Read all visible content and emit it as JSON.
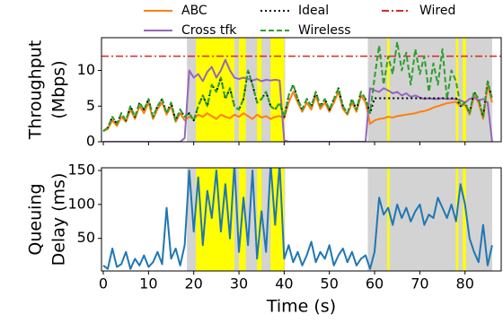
{
  "chart_data": [
    {
      "type": "line",
      "ylabel": [
        "Throughput",
        "(Mbps)"
      ],
      "x": [
        0,
        1,
        2,
        3,
        4,
        5,
        6,
        7,
        8,
        9,
        10,
        11,
        12,
        13,
        14,
        15,
        16,
        17,
        18,
        19,
        20,
        21,
        22,
        23,
        24,
        25,
        26,
        27,
        28,
        29,
        30,
        31,
        32,
        33,
        34,
        35,
        36,
        37,
        38,
        39,
        40,
        41,
        42,
        43,
        44,
        45,
        46,
        47,
        48,
        49,
        50,
        51,
        52,
        53,
        54,
        55,
        56,
        57,
        58,
        59,
        60,
        61,
        62,
        63,
        64,
        65,
        66,
        67,
        68,
        69,
        70,
        71,
        72,
        73,
        74,
        75,
        76,
        77,
        78,
        79,
        80,
        81,
        82,
        83,
        84,
        85,
        86
      ],
      "series": [
        {
          "name": "ABC",
          "color": "#ff7f0e",
          "style": "solid",
          "values": [
            1.5,
            1.8,
            3,
            2.2,
            3.5,
            2.8,
            4.5,
            3.2,
            5,
            4,
            5.5,
            3.2,
            4.6,
            5.5,
            3.8,
            5,
            2.8,
            4,
            3,
            3.5,
            3.2,
            3.8,
            3.5,
            4,
            3.6,
            3.2,
            3.8,
            3.5,
            3.3,
            3.8,
            3.5,
            4,
            3.6,
            3.2,
            3.8,
            3.4,
            3.6,
            3.2,
            3.5,
            3.6,
            3.3,
            5.5,
            7,
            5.5,
            4.2,
            5.5,
            4.5,
            6.5,
            4.6,
            5.5,
            4.2,
            5.5,
            7,
            4.6,
            3.8,
            5.5,
            4.2,
            6.5,
            5.5,
            2.5,
            3,
            3.2,
            3.3,
            3.5,
            3.4,
            3.6,
            3.7,
            3.8,
            3.9,
            4,
            4.2,
            4.3,
            4.5,
            4.8,
            5,
            5.2,
            5.4,
            5.5,
            5.6,
            5,
            5.2,
            3.8,
            6.5,
            5.5,
            3.2,
            8,
            5.5
          ]
        },
        {
          "name": "Cross tfk",
          "color": "#9467bd",
          "style": "solid",
          "values": [
            0,
            0,
            0,
            0,
            0,
            0,
            0,
            0,
            0,
            0,
            0,
            0,
            0,
            0,
            0,
            0,
            0,
            0,
            0.5,
            10,
            9,
            9.5,
            8.5,
            9.8,
            10.5,
            9,
            10,
            11.5,
            10,
            9,
            8.8,
            9,
            8.8,
            8.6,
            8.8,
            8.5,
            8.7,
            8.6,
            8.7,
            8.6,
            0.2,
            0,
            0,
            0,
            0,
            0,
            0,
            0,
            0,
            0,
            0,
            0,
            0,
            0,
            0,
            0,
            0,
            0,
            0,
            7.5,
            7.2,
            7,
            7.5,
            7.2,
            6.8,
            7,
            6.5,
            6.8,
            6.3,
            6.5,
            6.2,
            6,
            6.1,
            6,
            6,
            6.1,
            6,
            6,
            6,
            5.8,
            5.5,
            6,
            6.2,
            5.8,
            6,
            5.5,
            0
          ]
        },
        {
          "name": "Ideal",
          "color": "#000000",
          "style": "dotted",
          "values": [
            1.5,
            2,
            3.5,
            2.5,
            4,
            3,
            5,
            3.5,
            5.5,
            4.5,
            6,
            3.5,
            5,
            6,
            4,
            5.5,
            3,
            4.5,
            3.5,
            4,
            3,
            5,
            6.5,
            5,
            8,
            7,
            9,
            6,
            7.5,
            5,
            4.5,
            6,
            10,
            8,
            5.5,
            6,
            7,
            5,
            4.5,
            5.5,
            3.5,
            6.5,
            8,
            6,
            4.5,
            6,
            5,
            7,
            5,
            6,
            4.5,
            6,
            7.5,
            5,
            4,
            6,
            4.5,
            7,
            6,
            4,
            6.1,
            6.1,
            6.1,
            6.1,
            6.1,
            6.1,
            6.1,
            6.1,
            6.1,
            6.1,
            6.1,
            6.1,
            6.1,
            6.1,
            6.1,
            6.1,
            6.1,
            6.1,
            6.1,
            5,
            5.5,
            4,
            7,
            6,
            3.5,
            8.5,
            6
          ]
        },
        {
          "name": "Wireless",
          "color": "#2ca02c",
          "style": "dashed",
          "values": [
            1.5,
            2,
            3.5,
            2.5,
            4,
            3,
            5,
            3.5,
            5.5,
            4.5,
            6,
            3.5,
            5,
            6,
            4,
            5.5,
            3,
            4.5,
            3.5,
            4,
            3,
            5,
            6.5,
            5,
            8,
            7,
            9,
            6,
            7.5,
            5,
            4.5,
            6,
            10,
            8,
            5.5,
            6,
            7,
            5,
            4.5,
            5.5,
            3.5,
            6.5,
            8,
            6,
            4.5,
            6,
            5,
            7,
            5,
            6,
            4.5,
            6,
            7.5,
            5,
            4,
            6,
            4.5,
            7,
            6,
            4,
            9,
            13.5,
            8,
            12,
            9.5,
            14,
            10,
            12.5,
            8,
            13,
            9.5,
            12,
            7,
            11,
            8,
            13,
            6,
            10,
            8.5,
            5,
            5.5,
            4,
            7,
            6,
            3.5,
            8.5,
            6
          ]
        }
      ],
      "hlines": [
        {
          "name": "Wired",
          "color": "#d62728",
          "style": "dashdot",
          "value": 12
        }
      ],
      "spans": [
        {
          "start": 18.5,
          "end": 40.2,
          "color": "#d3d3d3"
        },
        {
          "start": 58.5,
          "end": 86,
          "color": "#d3d3d3"
        },
        {
          "start": 20.5,
          "end": 29,
          "color": "#ffff00"
        },
        {
          "start": 30,
          "end": 31.5,
          "color": "#ffff00"
        },
        {
          "start": 34,
          "end": 35,
          "color": "#ffff00"
        },
        {
          "start": 37,
          "end": 40,
          "color": "#ffff00"
        },
        {
          "start": 62.8,
          "end": 63.3,
          "color": "#ffff00"
        },
        {
          "start": 78,
          "end": 78.5,
          "color": "#ffff00"
        },
        {
          "start": 79.5,
          "end": 80.2,
          "color": "#ffff00"
        }
      ],
      "xlim": [
        -0.4,
        88
      ],
      "xticks": [
        0,
        10,
        20,
        30,
        40,
        50,
        60,
        70,
        80
      ],
      "xtick_labels": false,
      "ylim": [
        0,
        14.6
      ],
      "yticks": [
        0,
        5,
        10
      ],
      "legend": "upper center outside"
    },
    {
      "type": "line",
      "ylabel": [
        "Queuing",
        "Delay (ms)"
      ],
      "xlabel": "Time (s)",
      "x": [
        0,
        1,
        2,
        3,
        4,
        5,
        6,
        7,
        8,
        9,
        10,
        11,
        12,
        13,
        14,
        15,
        16,
        17,
        18,
        19,
        20,
        21,
        22,
        23,
        24,
        25,
        26,
        27,
        28,
        29,
        30,
        31,
        32,
        33,
        34,
        35,
        36,
        37,
        38,
        39,
        40,
        41,
        42,
        43,
        44,
        45,
        46,
        47,
        48,
        49,
        50,
        51,
        52,
        53,
        54,
        55,
        56,
        57,
        58,
        59,
        60,
        61,
        62,
        63,
        64,
        65,
        66,
        67,
        68,
        69,
        70,
        71,
        72,
        73,
        74,
        75,
        76,
        77,
        78,
        79,
        80,
        81,
        82,
        83,
        84,
        85,
        86
      ],
      "series": [
        {
          "name": "Delay",
          "color": "#1f77b4",
          "style": "solid",
          "values": [
            10,
            5,
            35,
            8,
            12,
            30,
            5,
            20,
            10,
            25,
            8,
            15,
            30,
            12,
            95,
            20,
            35,
            10,
            40,
            150,
            60,
            140,
            40,
            120,
            80,
            150,
            60,
            130,
            50,
            160,
            30,
            110,
            40,
            150,
            20,
            90,
            30,
            160,
            70,
            160,
            20,
            40,
            15,
            30,
            10,
            25,
            45,
            15,
            30,
            20,
            40,
            10,
            25,
            35,
            15,
            30,
            10,
            20,
            25,
            5,
            30,
            110,
            85,
            95,
            70,
            100,
            80,
            95,
            75,
            90,
            100,
            70,
            85,
            80,
            110,
            95,
            80,
            100,
            75,
            130,
            100,
            50,
            30,
            15,
            70,
            10,
            40
          ]
        }
      ],
      "spans": [
        {
          "start": 18.5,
          "end": 40.2,
          "color": "#d3d3d3"
        },
        {
          "start": 58.5,
          "end": 86,
          "color": "#d3d3d3"
        },
        {
          "start": 20.5,
          "end": 29,
          "color": "#ffff00"
        },
        {
          "start": 30,
          "end": 31.5,
          "color": "#ffff00"
        },
        {
          "start": 34,
          "end": 35,
          "color": "#ffff00"
        },
        {
          "start": 37,
          "end": 40,
          "color": "#ffff00"
        },
        {
          "start": 62.8,
          "end": 63.3,
          "color": "#ffff00"
        },
        {
          "start": 78,
          "end": 78.5,
          "color": "#ffff00"
        },
        {
          "start": 79.5,
          "end": 80.2,
          "color": "#ffff00"
        }
      ],
      "xlim": [
        -0.4,
        88
      ],
      "xticks": [
        0,
        10,
        20,
        30,
        40,
        50,
        60,
        70,
        80
      ],
      "ylim": [
        2,
        154
      ],
      "yticks": [
        50,
        100,
        150
      ]
    }
  ]
}
